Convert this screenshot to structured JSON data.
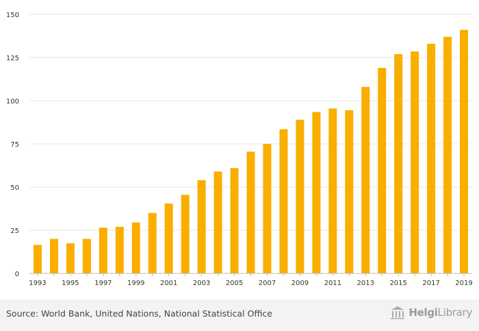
{
  "chart_data": {
    "type": "bar",
    "categories": [
      "1993",
      "1994",
      "1995",
      "1996",
      "1997",
      "1998",
      "1999",
      "2000",
      "2001",
      "2002",
      "2003",
      "2004",
      "2005",
      "2006",
      "2007",
      "2008",
      "2009",
      "2010",
      "2011",
      "2012",
      "2013",
      "2014",
      "2015",
      "2016",
      "2017",
      "2018",
      "2019"
    ],
    "values": [
      16.5,
      20,
      17.5,
      20,
      26.5,
      27,
      29.5,
      35,
      40.5,
      45.5,
      54,
      59,
      61,
      70.5,
      75,
      83.5,
      89,
      93.5,
      95.5,
      94.5,
      108,
      119,
      127,
      128.5,
      133,
      137,
      141
    ],
    "x_tick_labels": [
      "1993",
      "1995",
      "1997",
      "1999",
      "2001",
      "2003",
      "2005",
      "2007",
      "2009",
      "2011",
      "2013",
      "2015",
      "2017",
      "2019"
    ],
    "y_ticks": [
      0,
      25,
      50,
      75,
      100,
      125,
      150
    ],
    "ylim": [
      0,
      150
    ],
    "title": "",
    "xlabel": "",
    "ylabel": "",
    "grid": true,
    "bar_color": "#f9ae00"
  },
  "footer": {
    "source": "Source: World Bank, United Nations, National Statistical Office",
    "logo_bold": "Helgi",
    "logo_rest": "Library"
  }
}
